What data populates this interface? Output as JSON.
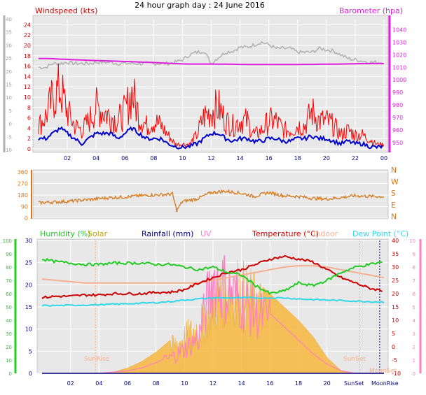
{
  "title": "24 hour graph day : 24 June 2016",
  "colors": {
    "wind_gust": "#ff0000",
    "wind_avg": "#0000cc",
    "barometer": "#e020e0",
    "baro_trace": "#b0b0b0",
    "direction": "#d87818",
    "humidity": "#22cc22",
    "solar": "#f8b840",
    "rain": "#000080",
    "uv": "#ff80c0",
    "temperature": "#cc0000",
    "indoor": "#f4b090",
    "dew_point": "#30d8e8",
    "panel_bg": "#e8e8e8",
    "grid": "#ffffff"
  },
  "chart_data": [
    {
      "type": "line",
      "name": "wind_barometer",
      "left_label": "Windspeed (kts)",
      "right_label": "Barometer (hpa)",
      "x_ticks": [
        "02",
        "04",
        "06",
        "08",
        "10",
        "12",
        "14",
        "16",
        "18",
        "20",
        "22",
        "00"
      ],
      "y_left_outer_ticks": [
        40,
        35,
        30,
        25,
        20,
        15,
        10,
        5,
        0,
        -5,
        -10
      ],
      "y_left_ticks": [
        24,
        22,
        20,
        18,
        16,
        14,
        12,
        10,
        8,
        6,
        4,
        2,
        0
      ],
      "y_right_ticks": [
        1040,
        1030,
        1020,
        1010,
        1000,
        990,
        980,
        970,
        960,
        950
      ],
      "x_hours": [
        0,
        0.5,
        1,
        1.5,
        2,
        2.5,
        3,
        3.5,
        4,
        4.5,
        5,
        5.5,
        6,
        6.5,
        7,
        7.5,
        8,
        8.5,
        9,
        9.5,
        10,
        10.5,
        11,
        11.5,
        12,
        12.5,
        13,
        13.5,
        14,
        14.5,
        15,
        15.5,
        16,
        16.5,
        17,
        17.5,
        18,
        18.5,
        19,
        19.5,
        20,
        20.5,
        21,
        21.5,
        22,
        22.5,
        23,
        23.5,
        24
      ],
      "series": [
        {
          "key": "gust",
          "values": [
            5,
            7,
            11,
            13,
            8,
            5,
            4,
            6,
            9,
            8,
            7,
            6,
            8,
            12,
            7,
            5,
            6,
            5,
            3,
            1,
            1,
            1,
            3,
            7,
            8,
            9,
            6,
            5,
            6,
            6,
            3,
            4,
            6,
            6,
            4,
            4,
            5,
            5,
            8,
            6,
            6,
            5,
            3,
            4,
            3,
            3,
            2,
            1,
            1
          ]
        },
        {
          "key": "avg",
          "values": [
            2,
            2,
            3,
            4,
            3,
            2,
            1,
            2,
            3,
            3,
            3,
            2,
            3,
            4,
            3,
            2,
            2,
            2,
            1,
            0.5,
            0.3,
            0.5,
            1,
            2,
            3,
            3,
            2,
            1.5,
            2,
            2,
            1.5,
            1.5,
            2,
            2,
            1.5,
            1.5,
            2,
            2,
            2.5,
            2,
            2,
            1.5,
            1,
            1.5,
            1,
            1,
            0.5,
            0.3,
            0.5
          ]
        },
        {
          "key": "barometer",
          "values": [
            1017,
            1017,
            1016.8,
            1016.5,
            1016.3,
            1016,
            1015.8,
            1015.6,
            1015.4,
            1015.2,
            1015,
            1014.8,
            1014.6,
            1014.4,
            1014.2,
            1014,
            1013.8,
            1013.5,
            1013.2,
            1013,
            1012.7,
            1012.6,
            1012.6,
            1012.6,
            1012.6,
            1012.5,
            1012.5,
            1012.4,
            1012.3,
            1012.2,
            1012.2,
            1012.2,
            1012.2,
            1012.2,
            1012.2,
            1012.2,
            1012.2,
            1012.3,
            1012.3,
            1012.4,
            1012.5,
            1012.5,
            1012.6,
            1012.7,
            1012.8,
            1012.9,
            1013,
            1013,
            1013
          ]
        },
        {
          "key": "baro_trace",
          "values": [
            1010,
            1010,
            1013,
            1013,
            1014,
            1013,
            1013,
            1013,
            1014,
            1014,
            1014,
            1013,
            1013,
            1013,
            1013,
            1013,
            1013,
            1013,
            1013,
            1014,
            1016,
            1020,
            1022,
            1023,
            1013,
            1018,
            1022,
            1023,
            1026,
            1026,
            1028,
            1030,
            1028,
            1025,
            1025,
            1025,
            1022,
            1022,
            1022,
            1025,
            1024,
            1023,
            1020,
            1017,
            1016,
            1015,
            1014,
            1014,
            1014
          ]
        }
      ]
    },
    {
      "type": "line",
      "name": "wind_direction",
      "left_ticks": [
        360,
        270,
        180,
        90,
        0
      ],
      "right_ticks": [
        "N",
        "W",
        "S",
        "E",
        "N"
      ],
      "x_hours": [
        0,
        1,
        2,
        3,
        4,
        5,
        6,
        7,
        8,
        9,
        9.3,
        9.6,
        10,
        11,
        12,
        13,
        14,
        15,
        16,
        17,
        18,
        19,
        20,
        21,
        22,
        23,
        24
      ],
      "series": [
        {
          "key": "direction",
          "values": [
            120,
            125,
            130,
            140,
            150,
            160,
            165,
            175,
            180,
            185,
            190,
            60,
            130,
            150,
            200,
            210,
            195,
            170,
            200,
            175,
            170,
            155,
            150,
            160,
            175,
            170,
            168
          ]
        }
      ]
    },
    {
      "type": "line",
      "name": "temperature_humidity_solar",
      "labels": {
        "humidity": "Humidity (%)",
        "solar": "Solar",
        "rain": "Rainfall (mm)",
        "uv": "UV",
        "temperature": "Temperature (°C)",
        "indoor": "Indoor",
        "dew_point": "Dew Point (°C)",
        "sunrise": "SunRise",
        "sunset": "SunSet",
        "moonrise": "MoonRise",
        "moonset": "MoonSet"
      },
      "x_ticks": [
        "02",
        "04",
        "06",
        "08",
        "10",
        "12",
        "14",
        "16",
        "18",
        "20"
      ],
      "humidity_ticks": [
        100,
        90,
        80,
        70,
        60,
        50,
        40,
        30,
        20,
        10,
        0
      ],
      "rain_ticks": [
        30,
        25,
        20,
        15,
        10,
        5,
        0
      ],
      "temp_ticks": [
        40,
        35,
        30,
        25,
        20,
        15,
        10,
        5,
        0,
        -5,
        -10
      ],
      "uv_ticks": [
        10,
        9,
        8,
        7,
        6,
        5,
        4,
        3,
        2,
        1,
        0
      ],
      "x_hours": [
        0,
        1,
        2,
        3,
        4,
        5,
        6,
        7,
        8,
        9,
        10,
        11,
        12,
        13,
        14,
        15,
        16,
        17,
        18,
        19,
        20,
        21,
        22,
        23,
        24
      ],
      "series": [
        {
          "key": "humidity",
          "values": [
            86,
            84,
            83,
            82,
            82,
            83,
            83,
            83,
            82,
            82,
            80,
            78,
            80,
            76,
            74,
            66,
            60,
            62,
            68,
            66,
            70,
            76,
            80,
            82,
            84
          ]
        },
        {
          "key": "temperature",
          "values": [
            18.5,
            19,
            19,
            19.5,
            19.5,
            20,
            20,
            20,
            20.5,
            20.5,
            21.5,
            24,
            26,
            28,
            29,
            31,
            33,
            34,
            33,
            32,
            29,
            26,
            24,
            22,
            21
          ]
        },
        {
          "key": "indoor",
          "values": [
            25.5,
            25,
            24.5,
            24,
            24,
            24,
            24,
            24,
            24,
            24,
            24,
            24,
            25,
            26,
            27,
            28,
            29,
            30,
            30.5,
            30.5,
            30,
            29,
            28,
            27,
            26
          ]
        },
        {
          "key": "dew_point",
          "values": [
            15.5,
            15.5,
            15.6,
            15.7,
            15.8,
            16,
            16.2,
            16.4,
            16.6,
            17,
            17.6,
            18,
            18.4,
            18.4,
            18.4,
            18.4,
            18.4,
            18.4,
            18,
            17.8,
            17.6,
            17.4,
            17.2,
            17,
            16.8
          ]
        },
        {
          "key": "solar",
          "values": [
            0,
            0,
            0,
            0,
            0,
            0.1,
            0.4,
            0.9,
            1.6,
            2.5,
            3.5,
            4.5,
            7,
            8.5,
            8,
            7,
            6,
            5,
            4,
            2.8,
            1.2,
            0.2,
            0,
            0,
            0
          ]
        },
        {
          "key": "uv",
          "values": [
            0,
            0,
            0,
            0,
            0,
            0.1,
            0.2,
            0.4,
            0.8,
            1.3,
            2,
            3,
            8,
            7,
            6,
            5,
            4.5,
            3.5,
            2.5,
            1.5,
            0.7,
            0.2,
            0,
            0,
            0
          ]
        },
        {
          "key": "rain",
          "values": [
            0,
            0,
            0,
            0,
            0,
            0,
            0,
            0,
            0,
            0,
            0,
            0,
            0,
            0,
            0,
            0,
            0,
            0,
            0,
            0,
            0,
            0,
            0,
            0,
            0
          ]
        }
      ],
      "sun_moon_hours": {
        "sunrise": 3.75,
        "sunset": 22.3,
        "moonrise": 23.7,
        "moonset": 24
      }
    }
  ]
}
